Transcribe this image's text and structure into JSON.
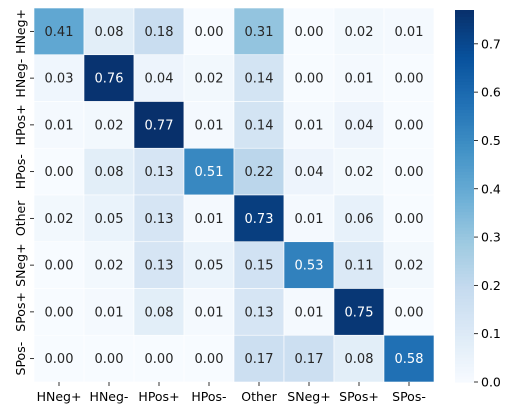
{
  "chart_data": {
    "type": "heatmap",
    "title": "",
    "xlabel": "",
    "ylabel": "",
    "x_categories": [
      "HNeg+",
      "HNeg-",
      "HPos+",
      "HPos-",
      "Other",
      "SNeg+",
      "SPos+",
      "SPos-"
    ],
    "y_categories": [
      "HNeg+",
      "HNeg-",
      "HPos+",
      "HPos-",
      "Other",
      "SNeg+",
      "SPos+",
      "SPos-"
    ],
    "values": [
      [
        0.41,
        0.08,
        0.18,
        0.0,
        0.31,
        0.0,
        0.02,
        0.01
      ],
      [
        0.03,
        0.76,
        0.04,
        0.02,
        0.14,
        0.0,
        0.01,
        0.0
      ],
      [
        0.01,
        0.02,
        0.77,
        0.01,
        0.14,
        0.01,
        0.04,
        0.0
      ],
      [
        0.0,
        0.08,
        0.13,
        0.51,
        0.22,
        0.04,
        0.02,
        0.0
      ],
      [
        0.02,
        0.05,
        0.13,
        0.01,
        0.73,
        0.01,
        0.06,
        0.0
      ],
      [
        0.0,
        0.02,
        0.13,
        0.05,
        0.15,
        0.53,
        0.11,
        0.02
      ],
      [
        0.0,
        0.01,
        0.08,
        0.01,
        0.13,
        0.01,
        0.75,
        0.0
      ],
      [
        0.0,
        0.0,
        0.0,
        0.0,
        0.17,
        0.17,
        0.08,
        0.58
      ]
    ],
    "value_format": "0.00",
    "colormap": "Blues",
    "color_range": [
      0.0,
      0.77
    ],
    "colorbar_ticks": [
      0.0,
      0.1,
      0.2,
      0.3,
      0.4,
      0.5,
      0.6,
      0.7
    ],
    "colorbar_tick_labels": [
      "0.0",
      "0.1",
      "0.2",
      "0.3",
      "0.4",
      "0.5",
      "0.6",
      "0.7"
    ],
    "colors": {
      "blues_stops": [
        "#f7fbff",
        "#deebf7",
        "#c6dbef",
        "#9ecae1",
        "#6baed6",
        "#4292c6",
        "#2171b5",
        "#08519c",
        "#08306b"
      ],
      "text_dark": "#262626",
      "text_light": "#ffffff",
      "cell_border": "#ffffff"
    },
    "grid": false,
    "legend": "colorbar-right"
  }
}
